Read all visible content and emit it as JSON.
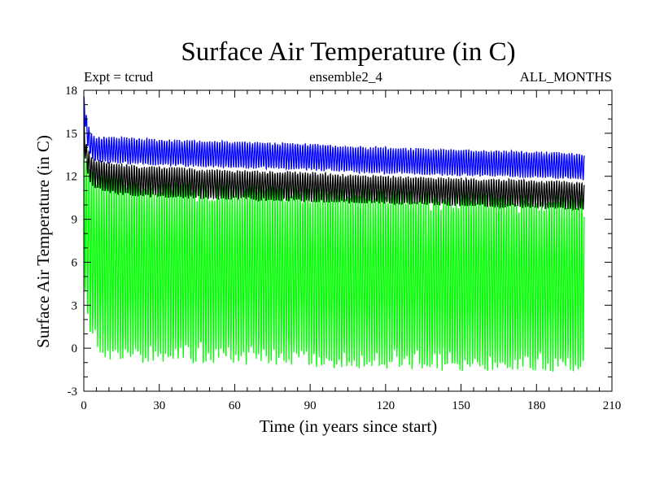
{
  "chart_data": {
    "type": "line",
    "title": "Surface Air Temperature (in C)",
    "subtitle_left": "Expt = tcrud",
    "subtitle_center": "ensemble2_4",
    "subtitle_right": "ALL_MONTHS",
    "xlabel": "Time (in years since start)",
    "ylabel": "Surface Air Temperature (in C)",
    "xlim": [
      0,
      210
    ],
    "ylim": [
      -3,
      18
    ],
    "x_ticks": [
      0,
      30,
      60,
      90,
      120,
      150,
      180,
      210
    ],
    "y_ticks": [
      -3,
      0,
      3,
      6,
      9,
      12,
      15,
      18
    ],
    "x_tick_labels": [
      "0",
      "30",
      "60",
      "90",
      "120",
      "150",
      "180",
      "210"
    ],
    "y_tick_labels": [
      "-3",
      "0",
      "3",
      "6",
      "9",
      "12",
      "15",
      "18"
    ],
    "grid": false,
    "legend": "none",
    "series": [
      {
        "color": "#00ff00",
        "summary": "monthly values oscillating with large annual cycle",
        "x": [
          0,
          0.5,
          1,
          2,
          3,
          5,
          10,
          20,
          30,
          50,
          70,
          90,
          110,
          130,
          150,
          170,
          190,
          199
        ],
        "upper": [
          15.5,
          14.2,
          13.4,
          12.8,
          12.3,
          11.9,
          11.7,
          11.4,
          11.3,
          11.1,
          10.9,
          10.8,
          10.7,
          10.6,
          10.4,
          10.3,
          10.2,
          10.1
        ],
        "lower": [
          5.0,
          4.0,
          3.2,
          2.0,
          1.2,
          0.4,
          -0.2,
          -0.4,
          -0.4,
          -0.5,
          -0.6,
          -0.7,
          -0.8,
          -0.9,
          -1.0,
          -1.0,
          -1.1,
          -1.1
        ]
      },
      {
        "color": "#000000",
        "summary": "monthly values in a narrow band",
        "x": [
          0,
          0.5,
          1,
          2,
          3,
          5,
          10,
          20,
          30,
          50,
          70,
          90,
          110,
          130,
          150,
          170,
          190,
          199
        ],
        "upper": [
          16.2,
          15.2,
          14.3,
          13.7,
          13.3,
          13.1,
          12.9,
          12.7,
          12.6,
          12.4,
          12.3,
          12.2,
          12.0,
          11.9,
          11.8,
          11.7,
          11.6,
          11.5
        ],
        "lower": [
          14.5,
          13.4,
          12.6,
          11.9,
          11.5,
          11.2,
          10.9,
          10.7,
          10.6,
          10.5,
          10.4,
          10.3,
          10.2,
          10.1,
          10.0,
          9.9,
          9.8,
          9.7
        ]
      },
      {
        "color": "#0000ff",
        "summary": "monthly values in a narrow band above the others",
        "x": [
          0,
          0.5,
          1,
          2,
          3,
          5,
          10,
          20,
          30,
          50,
          70,
          90,
          110,
          130,
          150,
          170,
          190,
          199
        ],
        "upper": [
          17.6,
          17.0,
          16.2,
          15.4,
          14.9,
          14.7,
          14.7,
          14.6,
          14.5,
          14.4,
          14.3,
          14.2,
          14.0,
          13.9,
          13.8,
          13.7,
          13.6,
          13.5
        ],
        "lower": [
          16.6,
          15.6,
          14.6,
          13.8,
          13.3,
          13.1,
          13.0,
          12.9,
          12.8,
          12.7,
          12.6,
          12.5,
          12.3,
          12.2,
          12.1,
          12.0,
          11.9,
          11.8
        ]
      }
    ]
  }
}
